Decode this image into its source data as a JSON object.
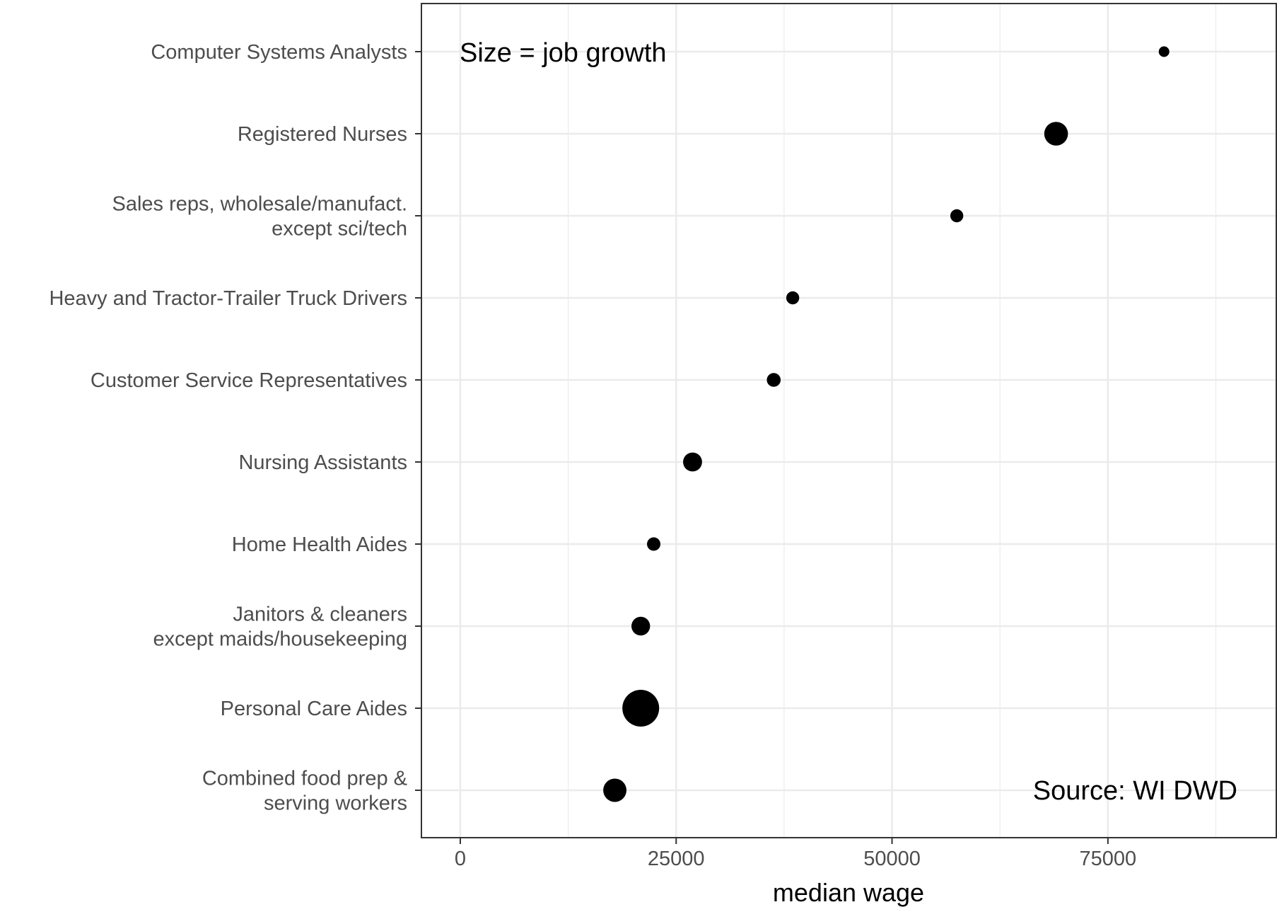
{
  "chart_data": {
    "type": "scatter",
    "xlabel": "median wage",
    "xlim": [
      -4500,
      94500
    ],
    "x_major_ticks": [
      0,
      25000,
      50000,
      75000
    ],
    "x_tick_labels": [
      "0",
      "25000",
      "50000",
      "75000"
    ],
    "x_minor_gridlines": [
      12500,
      37500,
      62500,
      87500
    ],
    "grid": true,
    "size_encoding": "job growth",
    "categories": [
      [
        "Computer Systems Analysts"
      ],
      [
        "Registered Nurses"
      ],
      [
        "Sales reps, wholesale/manufact.",
        "except sci/tech"
      ],
      [
        "Heavy and Tractor-Trailer Truck Drivers"
      ],
      [
        "Customer Service Representatives"
      ],
      [
        "Nursing Assistants"
      ],
      [
        "Home Health Aides"
      ],
      [
        "Janitors & cleaners",
        "except maids/housekeeping"
      ],
      [
        "Personal Care Aides"
      ],
      [
        "Combined food prep &",
        "serving workers"
      ]
    ],
    "points": [
      {
        "x": 81500,
        "size": 1
      },
      {
        "x": 69000,
        "size": 5
      },
      {
        "x": 57500,
        "size": 1.5
      },
      {
        "x": 38500,
        "size": 1.5
      },
      {
        "x": 36300,
        "size": 1.7
      },
      {
        "x": 26900,
        "size": 3.2
      },
      {
        "x": 22400,
        "size": 1.6
      },
      {
        "x": 20900,
        "size": 3.1
      },
      {
        "x": 20900,
        "size": 12
      },
      {
        "x": 17900,
        "size": 4.8
      }
    ],
    "annotations": [
      {
        "text": "Size = job growth",
        "position": "top-left"
      },
      {
        "text": "Source: WI DWD",
        "position": "bottom-right"
      }
    ]
  },
  "colors": {
    "point": "#000000",
    "gridline": "#ebebeb",
    "panel_border": "#333333",
    "axis_text": "#4d4d4d",
    "background": "#ffffff"
  }
}
